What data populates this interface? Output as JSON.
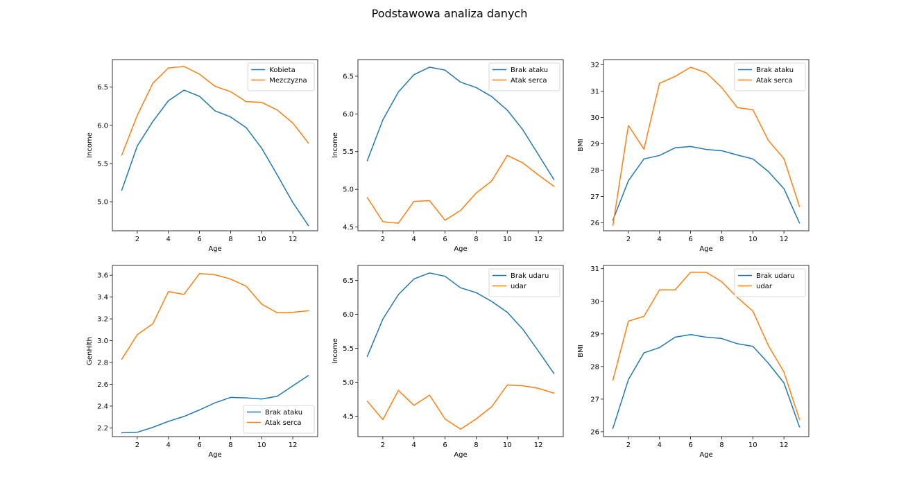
{
  "figure": {
    "title": "Podstawowa analiza danych"
  },
  "colors": {
    "blue": "#1f77b4",
    "orange": "#ff7f0e"
  },
  "chart_data": [
    {
      "type": "line",
      "xlabel": "Age",
      "ylabel": "Income",
      "xlim": [
        0.4,
        13.6
      ],
      "ylim": [
        4.62,
        6.86
      ],
      "xticks": [
        2,
        4,
        6,
        8,
        10,
        12
      ],
      "yticks": [
        5.0,
        5.5,
        6.0,
        6.5
      ],
      "legend": "top-right",
      "x": [
        1,
        2,
        3,
        4,
        5,
        6,
        7,
        8,
        9,
        10,
        11,
        12,
        13
      ],
      "series": [
        {
          "name": "Kobieta",
          "color": "#1f77b4",
          "values": [
            5.15,
            5.73,
            6.05,
            6.32,
            6.46,
            6.38,
            6.19,
            6.11,
            5.97,
            5.7,
            5.35,
            4.99,
            4.69
          ]
        },
        {
          "name": "Mezczyzna",
          "color": "#ff7f0e",
          "values": [
            5.61,
            6.13,
            6.55,
            6.75,
            6.77,
            6.67,
            6.51,
            6.44,
            6.31,
            6.3,
            6.2,
            6.03,
            5.77
          ]
        }
      ]
    },
    {
      "type": "line",
      "xlabel": "Age",
      "ylabel": "Income",
      "xlim": [
        0.4,
        13.6
      ],
      "ylim": [
        4.45,
        6.72
      ],
      "xticks": [
        2,
        4,
        6,
        8,
        10,
        12
      ],
      "yticks": [
        4.5,
        5.0,
        5.5,
        6.0,
        6.5
      ],
      "legend": "top-right",
      "x": [
        1,
        2,
        3,
        4,
        5,
        6,
        7,
        8,
        9,
        10,
        11,
        12,
        13
      ],
      "series": [
        {
          "name": "Brak ataku",
          "color": "#1f77b4",
          "values": [
            5.38,
            5.92,
            6.29,
            6.52,
            6.62,
            6.58,
            6.42,
            6.35,
            6.23,
            6.05,
            5.79,
            5.46,
            5.13
          ]
        },
        {
          "name": "Atak serca",
          "color": "#ff7f0e",
          "values": [
            4.89,
            4.57,
            4.55,
            4.84,
            4.85,
            4.59,
            4.72,
            4.95,
            5.11,
            5.45,
            5.35,
            5.19,
            5.04
          ]
        }
      ]
    },
    {
      "type": "line",
      "xlabel": "Age",
      "ylabel": "BMI",
      "xlim": [
        0.4,
        13.6
      ],
      "ylim": [
        25.7,
        32.2
      ],
      "xticks": [
        2,
        4,
        6,
        8,
        10,
        12
      ],
      "yticks": [
        26,
        27,
        28,
        29,
        30,
        31,
        32
      ],
      "legend": "top-right",
      "x": [
        1,
        2,
        3,
        4,
        5,
        6,
        7,
        8,
        9,
        10,
        11,
        12,
        13
      ],
      "series": [
        {
          "name": "Brak ataku",
          "color": "#1f77b4",
          "values": [
            26.1,
            27.6,
            28.43,
            28.56,
            28.85,
            28.9,
            28.79,
            28.74,
            28.58,
            28.43,
            27.95,
            27.3,
            26.0
          ]
        },
        {
          "name": "Atak serca",
          "color": "#ff7f0e",
          "values": [
            25.9,
            29.7,
            28.8,
            31.3,
            31.56,
            31.91,
            31.7,
            31.14,
            30.38,
            30.3,
            29.13,
            28.44,
            26.62
          ]
        }
      ]
    },
    {
      "type": "line",
      "xlabel": "Age",
      "ylabel": "GenHlth",
      "xlim": [
        0.4,
        13.6
      ],
      "ylim": [
        2.12,
        3.69
      ],
      "xticks": [
        2,
        4,
        6,
        8,
        10,
        12
      ],
      "yticks": [
        2.2,
        2.4,
        2.6,
        2.8,
        3.0,
        3.2,
        3.4,
        3.6
      ],
      "legend": "bottom-right",
      "x": [
        1,
        2,
        3,
        4,
        5,
        6,
        7,
        8,
        9,
        10,
        11,
        12,
        13
      ],
      "series": [
        {
          "name": "Brak ataku",
          "color": "#1f77b4",
          "values": [
            2.155,
            2.16,
            2.205,
            2.26,
            2.305,
            2.365,
            2.43,
            2.48,
            2.475,
            2.465,
            2.49,
            2.585,
            2.68
          ]
        },
        {
          "name": "Atak serca",
          "color": "#ff7f0e",
          "values": [
            2.83,
            3.055,
            3.155,
            3.45,
            3.425,
            3.615,
            3.605,
            3.565,
            3.5,
            3.335,
            3.255,
            3.26,
            3.275
          ]
        }
      ]
    },
    {
      "type": "line",
      "xlabel": "Age",
      "ylabel": "Income",
      "xlim": [
        0.4,
        13.6
      ],
      "ylim": [
        4.2,
        6.72
      ],
      "xticks": [
        2,
        4,
        6,
        8,
        10,
        12
      ],
      "yticks": [
        4.5,
        5.0,
        5.5,
        6.0,
        6.5
      ],
      "legend": "top-right",
      "x": [
        1,
        2,
        3,
        4,
        5,
        6,
        7,
        8,
        9,
        10,
        11,
        12,
        13
      ],
      "series": [
        {
          "name": "Brak udaru",
          "color": "#1f77b4",
          "values": [
            5.38,
            5.93,
            6.29,
            6.52,
            6.61,
            6.56,
            6.39,
            6.32,
            6.19,
            6.03,
            5.78,
            5.46,
            5.13
          ]
        },
        {
          "name": "udar",
          "color": "#ff7f0e",
          "values": [
            4.72,
            4.45,
            4.88,
            4.66,
            4.81,
            4.46,
            4.31,
            4.46,
            4.64,
            4.96,
            4.95,
            4.91,
            4.84
          ]
        }
      ]
    },
    {
      "type": "line",
      "xlabel": "Age",
      "ylabel": "BMI",
      "xlim": [
        0.4,
        13.6
      ],
      "ylim": [
        25.85,
        31.1
      ],
      "xticks": [
        2,
        4,
        6,
        8,
        10,
        12
      ],
      "yticks": [
        26,
        27,
        28,
        29,
        30,
        31
      ],
      "legend": "top-right",
      "x": [
        1,
        2,
        3,
        4,
        5,
        6,
        7,
        8,
        9,
        10,
        11,
        12,
        13
      ],
      "series": [
        {
          "name": "Brak udaru",
          "color": "#1f77b4",
          "values": [
            26.1,
            27.6,
            28.42,
            28.58,
            28.9,
            28.98,
            28.9,
            28.86,
            28.7,
            28.62,
            28.1,
            27.5,
            26.15
          ]
        },
        {
          "name": "udar",
          "color": "#ff7f0e",
          "values": [
            27.58,
            29.39,
            29.54,
            30.35,
            30.35,
            30.89,
            30.89,
            30.6,
            30.12,
            29.7,
            28.64,
            27.83,
            26.38
          ]
        }
      ]
    }
  ]
}
